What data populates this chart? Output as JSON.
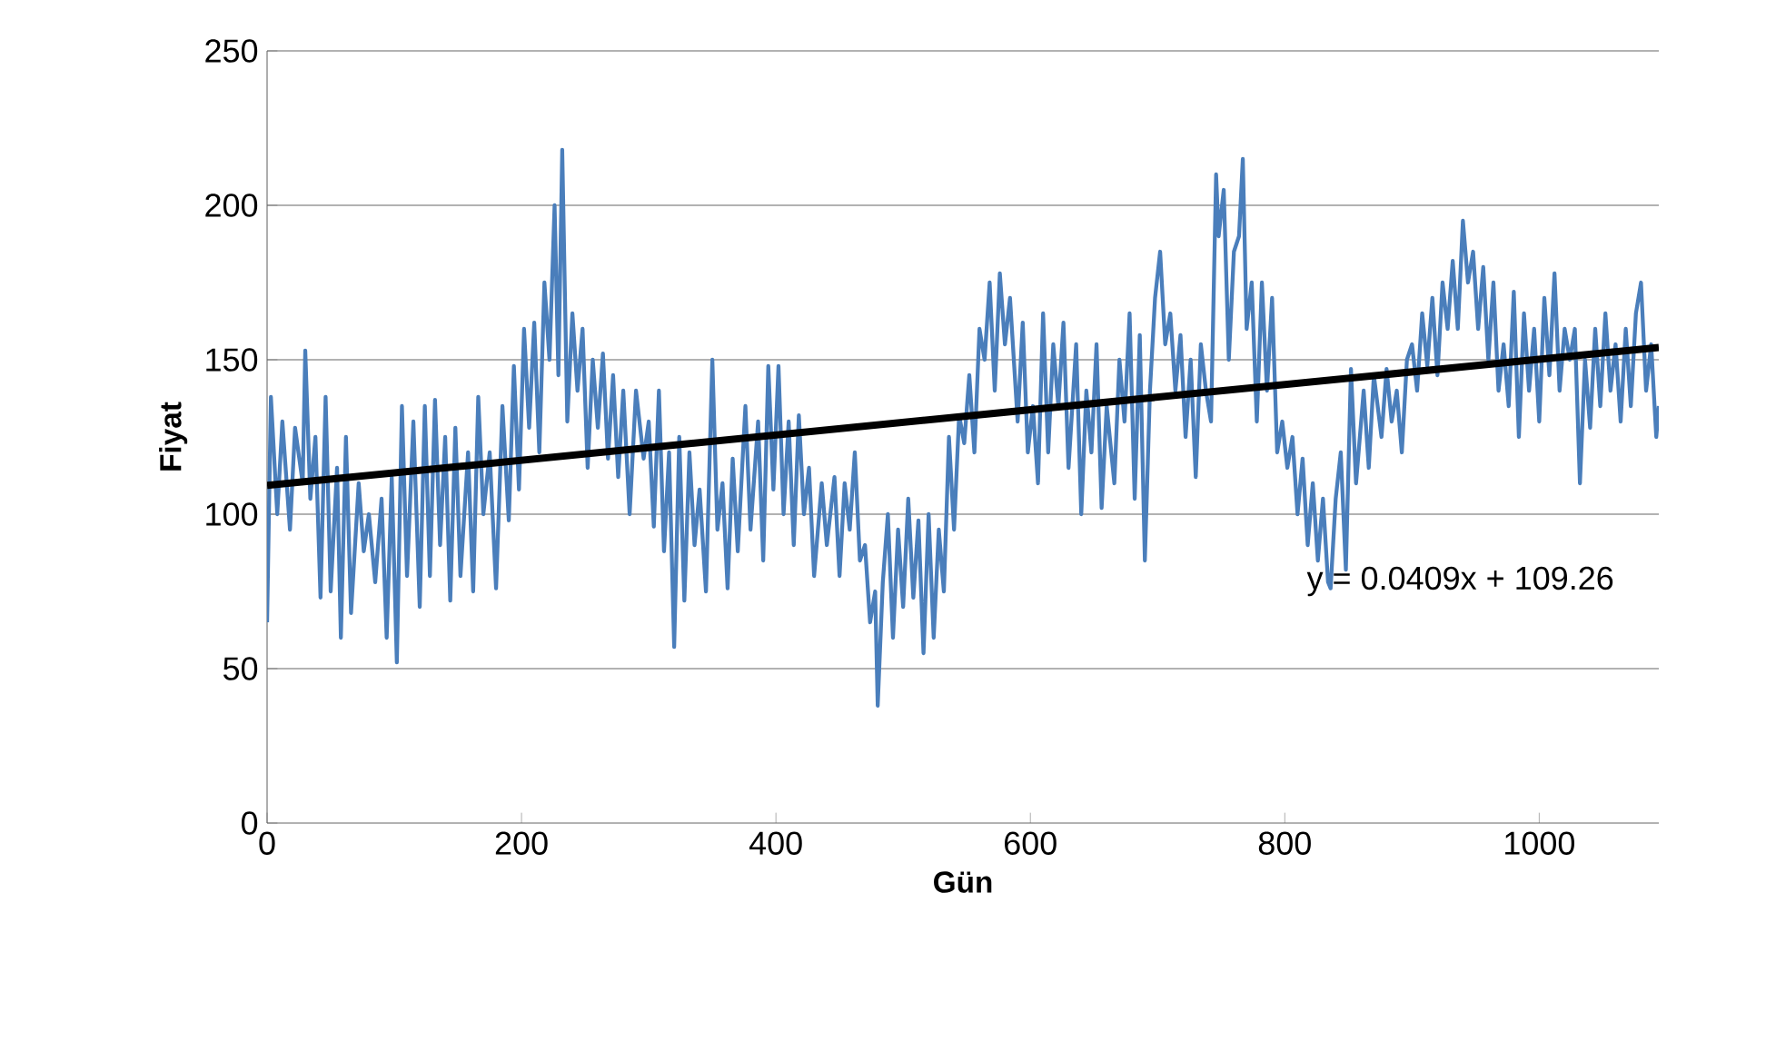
{
  "chart_data": {
    "type": "line",
    "xlabel": "Gün",
    "ylabel": "Fiyat",
    "xlim": [
      0,
      1094
    ],
    "ylim": [
      0,
      250
    ],
    "xticks": [
      0,
      200,
      400,
      600,
      800,
      1000
    ],
    "yticks": [
      0,
      50,
      100,
      150,
      200,
      250
    ],
    "grid": "y",
    "marker": "none",
    "line_style": "solid",
    "annotations": [
      "y = 0.0409x + 109.26"
    ],
    "series": [
      {
        "color": "#4a7ebb",
        "x": [
          0,
          3,
          8,
          12,
          18,
          22,
          28,
          30,
          34,
          38,
          42,
          46,
          50,
          55,
          58,
          62,
          66,
          72,
          76,
          80,
          85,
          90,
          94,
          98,
          102,
          106,
          110,
          115,
          120,
          124,
          128,
          132,
          136,
          140,
          144,
          148,
          152,
          158,
          162,
          166,
          170,
          175,
          180,
          185,
          190,
          194,
          198,
          202,
          206,
          210,
          214,
          218,
          222,
          226,
          229,
          232,
          236,
          240,
          244,
          248,
          252,
          256,
          260,
          264,
          268,
          272,
          276,
          280,
          285,
          290,
          296,
          300,
          304,
          308,
          312,
          316,
          320,
          324,
          328,
          332,
          336,
          340,
          345,
          350,
          354,
          358,
          362,
          366,
          370,
          376,
          380,
          386,
          390,
          394,
          398,
          402,
          406,
          410,
          414,
          418,
          422,
          426,
          430,
          436,
          440,
          446,
          450,
          454,
          458,
          462,
          466,
          470,
          474,
          478,
          480,
          484,
          488,
          492,
          496,
          500,
          504,
          508,
          512,
          516,
          520,
          524,
          528,
          532,
          536,
          540,
          544,
          548,
          552,
          556,
          560,
          564,
          568,
          572,
          576,
          580,
          584,
          590,
          594,
          598,
          602,
          606,
          610,
          614,
          618,
          622,
          626,
          630,
          636,
          640,
          644,
          648,
          652,
          656,
          660,
          666,
          670,
          674,
          678,
          682,
          686,
          690,
          694,
          698,
          702,
          706,
          710,
          714,
          718,
          722,
          726,
          730,
          734,
          738,
          742,
          746,
          748,
          752,
          756,
          760,
          764,
          767,
          770,
          774,
          778,
          782,
          786,
          790,
          794,
          798,
          802,
          806,
          810,
          814,
          818,
          822,
          826,
          830,
          834,
          836,
          840,
          844,
          848,
          852,
          856,
          862,
          866,
          870,
          876,
          880,
          884,
          888,
          892,
          896,
          900,
          904,
          908,
          912,
          916,
          920,
          924,
          928,
          932,
          936,
          940,
          944,
          948,
          952,
          956,
          960,
          964,
          968,
          972,
          976,
          980,
          984,
          988,
          992,
          996,
          1000,
          1004,
          1008,
          1012,
          1016,
          1020,
          1024,
          1028,
          1032,
          1036,
          1040,
          1044,
          1048,
          1052,
          1056,
          1060,
          1064,
          1068,
          1072,
          1076,
          1080,
          1084,
          1088,
          1092,
          1094
        ],
        "values": [
          65,
          138,
          100,
          130,
          95,
          128,
          110,
          153,
          105,
          125,
          73,
          138,
          75,
          115,
          60,
          125,
          68,
          110,
          88,
          100,
          78,
          105,
          60,
          112,
          52,
          135,
          80,
          130,
          70,
          135,
          80,
          137,
          90,
          125,
          72,
          128,
          80,
          120,
          75,
          138,
          100,
          120,
          76,
          135,
          98,
          148,
          108,
          160,
          128,
          162,
          120,
          175,
          150,
          200,
          145,
          218,
          130,
          165,
          140,
          160,
          115,
          150,
          128,
          152,
          118,
          145,
          112,
          140,
          100,
          140,
          118,
          130,
          96,
          140,
          88,
          120,
          57,
          125,
          72,
          120,
          90,
          108,
          75,
          150,
          95,
          110,
          76,
          118,
          88,
          135,
          95,
          130,
          85,
          148,
          108,
          148,
          100,
          130,
          90,
          132,
          100,
          115,
          80,
          110,
          90,
          112,
          80,
          110,
          95,
          120,
          85,
          90,
          65,
          75,
          38,
          78,
          100,
          60,
          95,
          70,
          105,
          73,
          98,
          55,
          100,
          60,
          95,
          75,
          125,
          95,
          132,
          123,
          145,
          120,
          160,
          150,
          175,
          140,
          178,
          155,
          170,
          130,
          162,
          120,
          135,
          110,
          165,
          120,
          155,
          135,
          162,
          115,
          155,
          100,
          140,
          120,
          155,
          102,
          135,
          110,
          150,
          130,
          165,
          105,
          158,
          85,
          140,
          170,
          185,
          155,
          165,
          140,
          158,
          125,
          150,
          112,
          155,
          140,
          130,
          210,
          190,
          205,
          150,
          185,
          190,
          215,
          160,
          175,
          130,
          175,
          140,
          170,
          120,
          130,
          115,
          125,
          100,
          118,
          90,
          110,
          85,
          105,
          78,
          76,
          105,
          120,
          82,
          147,
          110,
          140,
          115,
          145,
          125,
          147,
          130,
          140,
          120,
          150,
          155,
          140,
          165,
          148,
          170,
          145,
          175,
          160,
          182,
          160,
          195,
          175,
          185,
          160,
          180,
          150,
          175,
          140,
          155,
          135,
          172,
          125,
          165,
          140,
          160,
          130,
          170,
          145,
          178,
          140,
          160,
          150,
          160,
          110,
          150,
          128,
          160,
          135,
          165,
          140,
          155,
          130,
          160,
          135,
          165,
          175,
          140,
          155,
          125,
          135
        ]
      },
      {
        "color": "#000000",
        "x": [
          0,
          1094
        ],
        "values": [
          109.3,
          154.0
        ]
      }
    ]
  }
}
